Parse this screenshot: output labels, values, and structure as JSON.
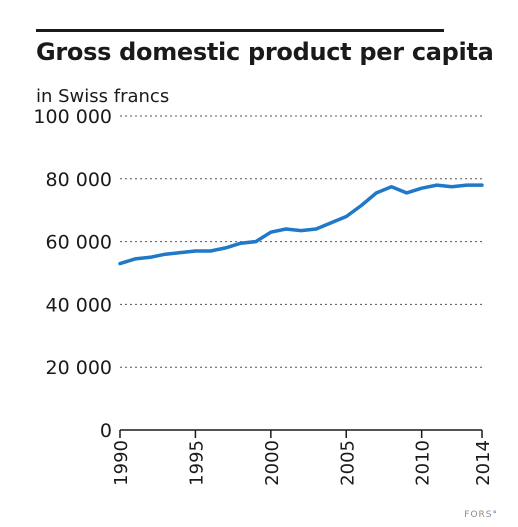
{
  "chart_data": {
    "type": "line",
    "title": "Gross domestic product per capita",
    "subtitle": "in Swiss francs",
    "xlabel": "",
    "ylabel": "",
    "ylim": [
      0,
      100000
    ],
    "xlim": [
      1990,
      2014
    ],
    "yticks": [
      {
        "value": 0,
        "label": "0"
      },
      {
        "value": 20000,
        "label": "20 000"
      },
      {
        "value": 40000,
        "label": "40 000"
      },
      {
        "value": 60000,
        "label": "60 000"
      },
      {
        "value": 80000,
        "label": "80 000"
      },
      {
        "value": 100000,
        "label": "100 000"
      }
    ],
    "xticks": [
      {
        "value": 1990,
        "label": "1990"
      },
      {
        "value": 1995,
        "label": "1995"
      },
      {
        "value": 2000,
        "label": "2000"
      },
      {
        "value": 2005,
        "label": "2005"
      },
      {
        "value": 2010,
        "label": "2010"
      },
      {
        "value": 2014,
        "label": "2014"
      }
    ],
    "grid": "horizontal-dotted",
    "color": "#1f78c8",
    "x": [
      1990,
      1991,
      1992,
      1993,
      1994,
      1995,
      1996,
      1997,
      1998,
      1999,
      2000,
      2001,
      2002,
      2003,
      2004,
      2005,
      2006,
      2007,
      2008,
      2009,
      2010,
      2011,
      2012,
      2013,
      2014
    ],
    "values": [
      53000,
      54500,
      55000,
      56000,
      56500,
      57000,
      57000,
      58000,
      59500,
      60000,
      63000,
      64000,
      63500,
      64000,
      66000,
      68000,
      71500,
      75500,
      77500,
      75500,
      77000,
      78000,
      77500,
      78000,
      78000
    ]
  },
  "credit": {
    "text": "FORS"
  }
}
